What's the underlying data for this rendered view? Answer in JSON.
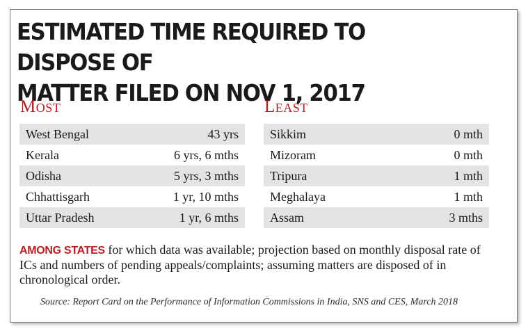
{
  "title": {
    "line1": "ESTIMATED TIME REQUIRED TO DISPOSE OF",
    "line2": "MATTER FILED ON NOV 1, 2017"
  },
  "most": {
    "heading": "Most",
    "rows": [
      {
        "state": "West Bengal",
        "time": "43 yrs"
      },
      {
        "state": "Kerala",
        "time": "6 yrs, 6 mths"
      },
      {
        "state": "Odisha",
        "time": "5 yrs, 3 mths"
      },
      {
        "state": "Chhattisgarh",
        "time": "1 yr, 10 mths"
      },
      {
        "state": "Uttar Pradesh",
        "time": "1 yr, 6 mths"
      }
    ]
  },
  "least": {
    "heading": "Least",
    "rows": [
      {
        "state": "Sikkim",
        "time": "0 mth"
      },
      {
        "state": "Mizoram",
        "time": "0 mth"
      },
      {
        "state": "Tripura",
        "time": "1 mth"
      },
      {
        "state": "Meghalaya",
        "time": "1 mth"
      },
      {
        "state": "Assam",
        "time": "3 mths"
      }
    ]
  },
  "note": {
    "lead": "AMONG STATES",
    "text": " for which data was available; projection based on monthly disposal rate of ICs and numbers of pending appeals/complaints; assuming matters are disposed of in chronological order."
  },
  "source": "Source: Report Card on the Performance of Information Commissions in India, SNS and CES, March 2018",
  "colors": {
    "accent": "#b21f24",
    "row_shade": "#e3e3e3",
    "text": "#1a1a1a"
  }
}
